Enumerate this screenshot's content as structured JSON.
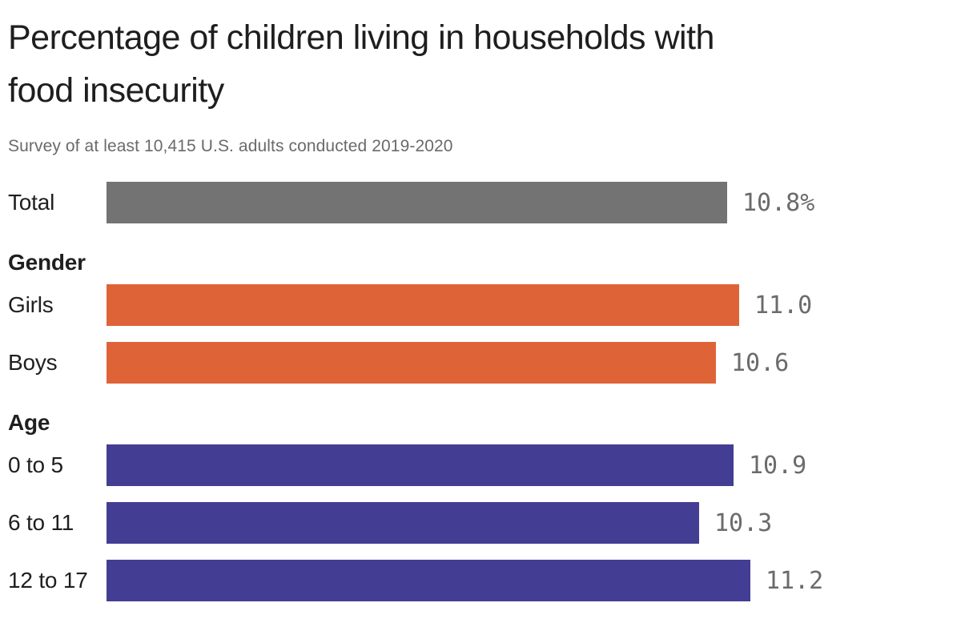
{
  "header": {
    "title": "Percentage of children living in households with food insecurity",
    "title_line1": "Percentage of children living in households with",
    "title_line2": "food insecurity",
    "subtitle": "Survey of at least 10,415 U.S. adults conducted 2019-2020"
  },
  "chart_data": {
    "type": "bar",
    "orientation": "horizontal",
    "title": "Percentage of children living in households with food insecurity",
    "subtitle": "Survey of at least 10,415 U.S. adults conducted 2019-2020",
    "xlim": [
      0,
      11.2
    ],
    "grid": false,
    "legend": false,
    "value_label_color": "#6b6b6b",
    "groups": [
      {
        "header": "",
        "color": "#737373",
        "rows": [
          {
            "label": "Total",
            "value": 10.8,
            "display": "10.8%"
          }
        ]
      },
      {
        "header": "Gender",
        "color": "#de6438",
        "rows": [
          {
            "label": "Girls",
            "value": 11.0,
            "display": "11.0"
          },
          {
            "label": "Boys",
            "value": 10.6,
            "display": "10.6"
          }
        ]
      },
      {
        "header": "Age",
        "color": "#433e93",
        "rows": [
          {
            "label": "0 to 5",
            "value": 10.9,
            "display": "10.9"
          },
          {
            "label": "6 to 11",
            "value": 10.3,
            "display": "10.3"
          },
          {
            "label": "12 to 17",
            "value": 11.2,
            "display": "11.2"
          }
        ]
      }
    ]
  }
}
